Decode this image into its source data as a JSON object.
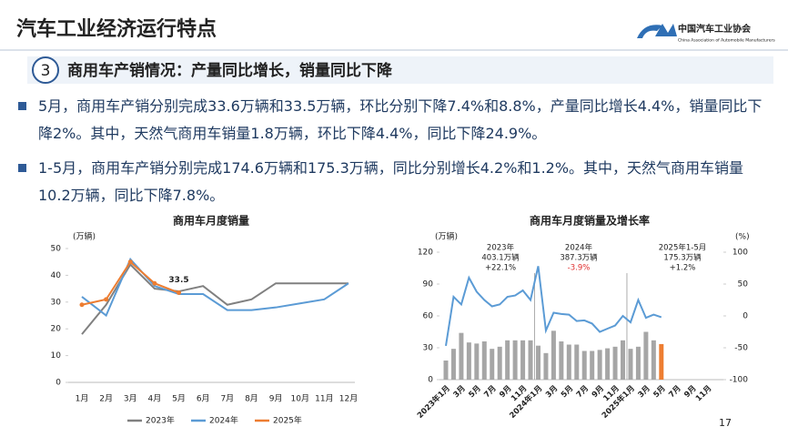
{
  "header": {
    "title": "汽车工业经济运行特点",
    "logo_name": "中国汽车工业协会",
    "logo_subtitle": "China Association of Automobile Manufacturers"
  },
  "section": {
    "number": "3",
    "heading": "商用车产销情况：产量同比增长，销量同比下降"
  },
  "bullets": [
    "5月，商用车产销分别完成33.6万辆和33.5万辆，环比分别下降7.4%和8.8%，产量同比增长4.4%，销量同比下降2%。其中，天然气商用车销量1.8万辆，环比下降4.4%，同比下降24.9%。",
    "1-5月，商用车产销分别完成174.6万辆和175.3万辆，同比分别增长4.2%和1.2%。其中，天然气商用车销量10.2万辆，同比下降7.8%。"
  ],
  "page_number": 17,
  "chart_data": [
    {
      "type": "line",
      "title": "商用车月度销量",
      "y_unit": "(万辆)",
      "categories": [
        "1月",
        "2月",
        "3月",
        "4月",
        "5月",
        "6月",
        "7月",
        "8月",
        "9月",
        "10月",
        "11月",
        "12月"
      ],
      "ylim": [
        0,
        50
      ],
      "yticks": [
        0,
        10,
        20,
        30,
        40,
        50
      ],
      "legend": "bottom",
      "label_last": true,
      "series": [
        {
          "name": "2023年",
          "color": "#808080",
          "values": [
            18,
            29,
            44,
            35,
            34,
            36,
            29,
            31,
            37,
            37,
            37,
            37
          ]
        },
        {
          "name": "2024年",
          "color": "#5b9bd5",
          "values": [
            32,
            25,
            46,
            36,
            33,
            33,
            27,
            27,
            28,
            29.5,
            31,
            37
          ]
        },
        {
          "name": "2025年",
          "color": "#ed7d31",
          "values": [
            29,
            31,
            45,
            37,
            33.5,
            null,
            null,
            null,
            null,
            null,
            null,
            null
          ]
        }
      ]
    },
    {
      "type": "combo",
      "title": "商用车月度销量及增长率",
      "y_unit": "(万辆)",
      "y2_unit": "(%)",
      "categories": [
        "2023年1月",
        null,
        "3月",
        null,
        "5月",
        null,
        "7月",
        null,
        "9月",
        null,
        "11月",
        null,
        "2024年1月",
        null,
        "3月",
        null,
        "5月",
        null,
        "7月",
        null,
        "9月",
        null,
        "11月",
        null,
        "2025年1月",
        null,
        "3月",
        null,
        "5月",
        null,
        "7月",
        null,
        "9月",
        null,
        "11月",
        null
      ],
      "ylim": [
        0,
        120
      ],
      "yticks": [
        0,
        30,
        60,
        90,
        120
      ],
      "y2lim": [
        -100,
        100
      ],
      "y2ticks": [
        -100,
        -50,
        0,
        50,
        100
      ],
      "series": [
        {
          "type": "bar",
          "color": "#a6a6a6",
          "highlight_color": "#ed7d31",
          "values": [
            18,
            29,
            44,
            35,
            34,
            36,
            29,
            31,
            37,
            37,
            37,
            37,
            32,
            25,
            46,
            36,
            33,
            33,
            27,
            27,
            28,
            29.5,
            31,
            37,
            29,
            31,
            45,
            37,
            33.5,
            null,
            null,
            null,
            null,
            null,
            null,
            null
          ]
        },
        {
          "type": "line",
          "axis": "y2",
          "color": "#5b9bd5",
          "values": [
            -47,
            30,
            18,
            60,
            38,
            25,
            15,
            18,
            30,
            32,
            40,
            25,
            78,
            -23,
            5,
            3,
            2,
            -8,
            -7,
            -12,
            -25,
            -20,
            -15,
            0,
            -10,
            25,
            -3,
            2,
            -2,
            null,
            null,
            null,
            null,
            null,
            null,
            null
          ]
        }
      ],
      "annotations": [
        {
          "period": "2023年",
          "volume": "403.1万辆",
          "growth": "+22.1%",
          "growth_color": "#222222"
        },
        {
          "period": "2024年",
          "volume": "387.3万辆",
          "growth": "-3.9%",
          "growth_color": "#e03030"
        },
        {
          "period": "2025年1-5月",
          "volume": "175.3万辆",
          "growth": "+1.2%",
          "growth_color": "#222222"
        }
      ]
    }
  ]
}
